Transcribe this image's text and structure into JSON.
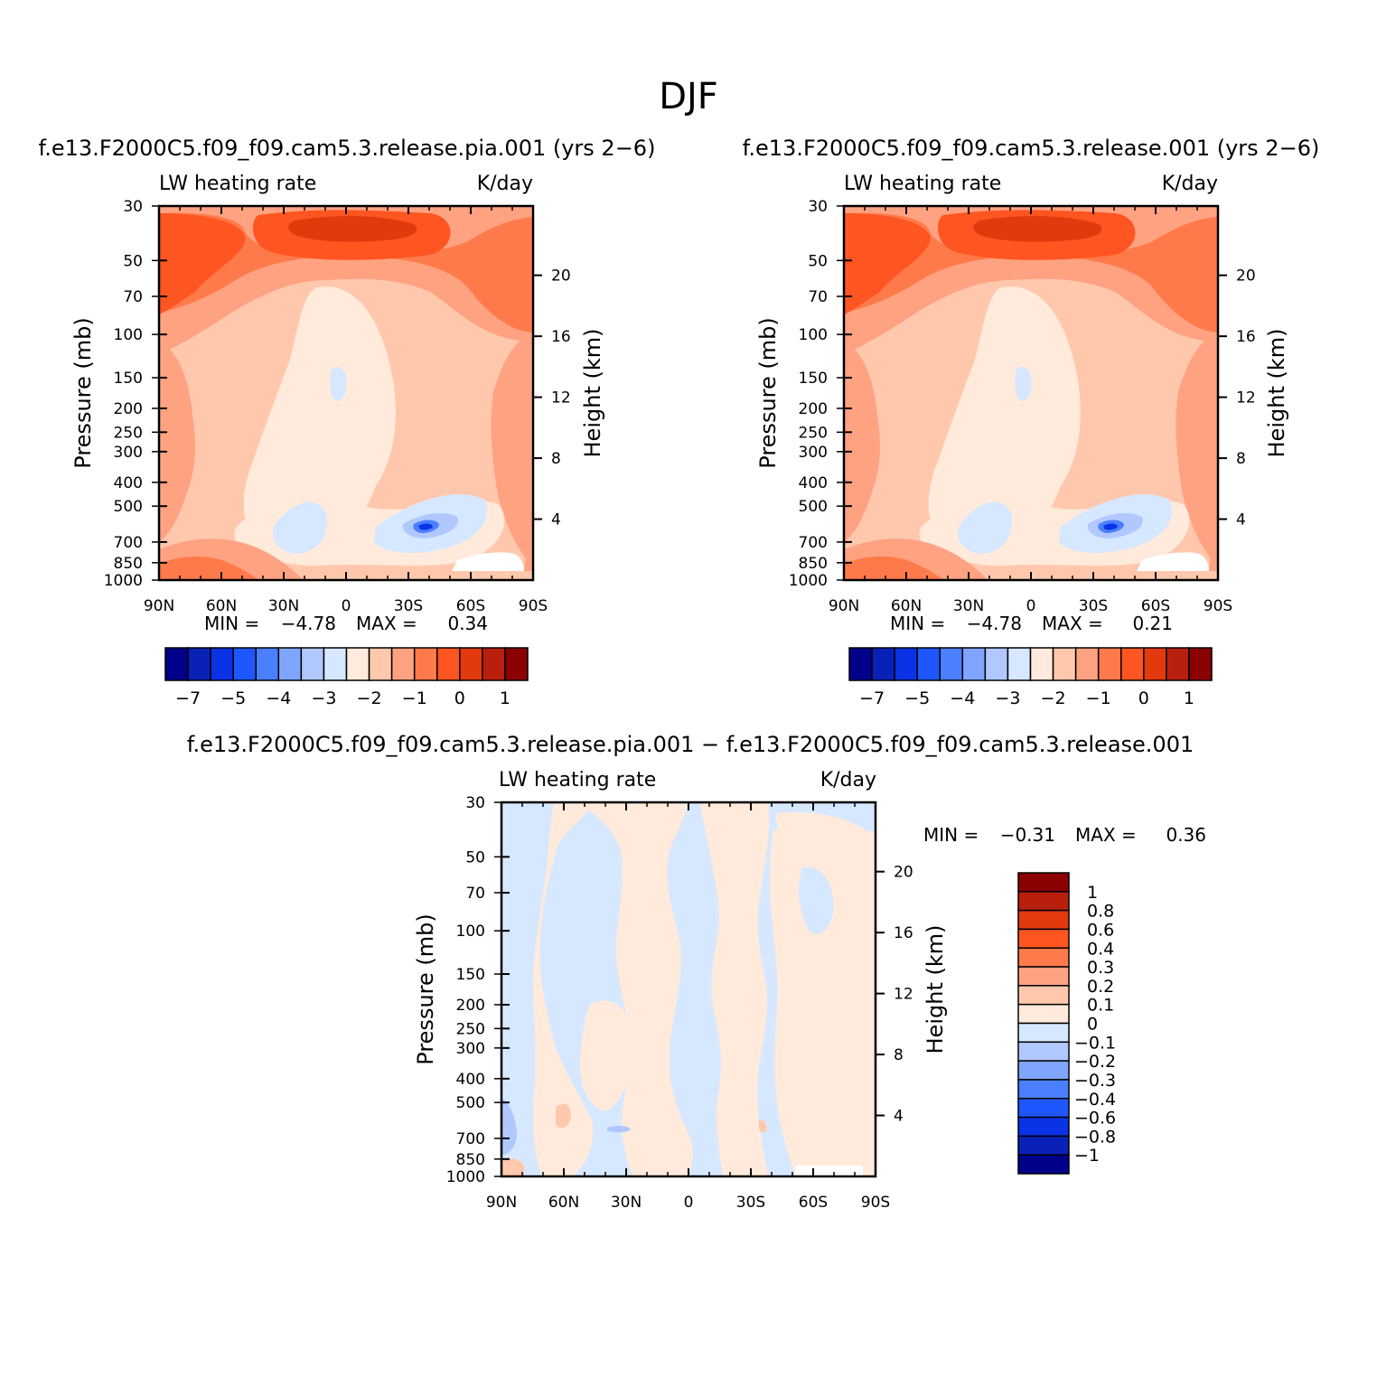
{
  "figure_title": "DJF",
  "colors": {
    "blue_red_14": [
      "#00008b",
      "#0a21b8",
      "#0a33e6",
      "#1f57ff",
      "#4a7fff",
      "#7fa5ff",
      "#b1c8ff",
      "#d6e8ff",
      "#ffeadb",
      "#ffc8ad",
      "#ffa282",
      "#ff7a4a",
      "#ff5521",
      "#e33a0d",
      "#b81f0d",
      "#8b0000"
    ]
  },
  "chart_data": [
    {
      "type": "heatmap",
      "panel": "top-left",
      "title": "f.e13.F2000C5.f09_f09.cam5.3.release.pia.001 (yrs 2−6)",
      "left_label": "LW heating rate",
      "right_label": "K/day",
      "ylabel": "Pressure (mb)",
      "ylabel_right": "Height (km)",
      "x_ticks": [
        "90N",
        "60N",
        "30N",
        "0",
        "30S",
        "60S",
        "90S"
      ],
      "y_ticks": [
        "30",
        "50",
        "70",
        "100",
        "150",
        "200",
        "250",
        "300",
        "400",
        "500",
        "700",
        "850",
        "1000"
      ],
      "y_ticks_right": [
        "20",
        "16",
        "12",
        "8",
        "4"
      ],
      "min_label": "MIN =",
      "min": "−4.78",
      "max_label": "MAX =",
      "max": "0.34",
      "colorbar_labels": [
        "−7",
        "−5",
        "−4",
        "−3",
        "−2",
        "−1",
        "0",
        "1"
      ],
      "colorbar_orientation": "horizontal"
    },
    {
      "type": "heatmap",
      "panel": "top-right",
      "title": "f.e13.F2000C5.f09_f09.cam5.3.release.001 (yrs 2−6)",
      "left_label": "LW heating rate",
      "right_label": "K/day",
      "ylabel": "Pressure (mb)",
      "ylabel_right": "Height (km)",
      "x_ticks": [
        "90N",
        "60N",
        "30N",
        "0",
        "30S",
        "60S",
        "90S"
      ],
      "y_ticks": [
        "30",
        "50",
        "70",
        "100",
        "150",
        "200",
        "250",
        "300",
        "400",
        "500",
        "700",
        "850",
        "1000"
      ],
      "y_ticks_right": [
        "20",
        "16",
        "12",
        "8",
        "4"
      ],
      "min_label": "MIN =",
      "min": "−4.78",
      "max_label": "MAX =",
      "max": "0.21",
      "colorbar_labels": [
        "−7",
        "−5",
        "−4",
        "−3",
        "−2",
        "−1",
        "0",
        "1"
      ],
      "colorbar_orientation": "horizontal"
    },
    {
      "type": "heatmap",
      "panel": "bottom-difference",
      "title": "f.e13.F2000C5.f09_f09.cam5.3.release.pia.001 − f.e13.F2000C5.f09_f09.cam5.3.release.001",
      "left_label": "LW heating rate",
      "right_label": "K/day",
      "ylabel": "Pressure (mb)",
      "ylabel_right": "Height (km)",
      "x_ticks": [
        "90N",
        "60N",
        "30N",
        "0",
        "30S",
        "60S",
        "90S"
      ],
      "y_ticks": [
        "30",
        "50",
        "70",
        "100",
        "150",
        "200",
        "250",
        "300",
        "400",
        "500",
        "700",
        "850",
        "1000"
      ],
      "y_ticks_right": [
        "20",
        "16",
        "12",
        "8",
        "4"
      ],
      "min_label": "MIN =",
      "min": "−0.31",
      "max_label": "MAX =",
      "max": "0.36",
      "colorbar_labels": [
        "1",
        "0.8",
        "0.6",
        "0.4",
        "0.3",
        "0.2",
        "0.1",
        "0",
        "−0.1",
        "−0.2",
        "−0.3",
        "−0.4",
        "−0.6",
        "−0.8",
        "−1"
      ],
      "colorbar_orientation": "vertical"
    }
  ]
}
